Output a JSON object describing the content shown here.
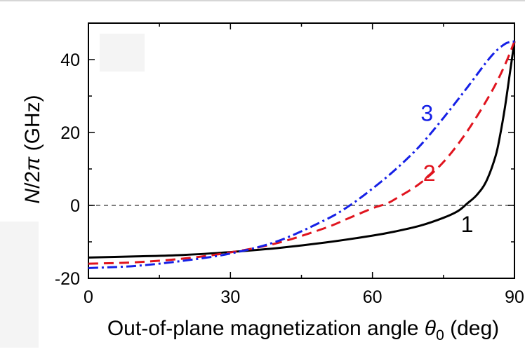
{
  "chart_data": {
    "type": "line",
    "xlabel_text": "Out-of-plane magnetization angle ",
    "xlabel_symbol": "θ",
    "xlabel_sub": "0",
    "xlabel_unit": " (deg)",
    "ylabel_italic": "N",
    "ylabel_mid": "/2",
    "ylabel_symbol": "π",
    "ylabel_unit": " (GHz)",
    "xlim": [
      0,
      90
    ],
    "ylim": [
      -20,
      50
    ],
    "xticks": [
      0,
      30,
      60,
      90
    ],
    "yticks": [
      -20,
      0,
      20,
      40
    ],
    "zero_line": true,
    "series": [
      {
        "name": "1",
        "color": "#000000",
        "dash": "solid",
        "label_at": [
          80,
          -5
        ],
        "x": [
          0,
          10,
          20,
          30,
          40,
          50,
          60,
          65,
          70,
          75,
          78,
          80,
          82,
          84,
          86,
          87,
          88,
          89,
          90
        ],
        "y": [
          -14.3,
          -14.0,
          -13.6,
          -12.8,
          -11.7,
          -10.2,
          -8.3,
          -7.1,
          -5.6,
          -3.4,
          -1.6,
          0.5,
          2.8,
          6.5,
          13.5,
          19.5,
          27,
          36,
          45
        ]
      },
      {
        "name": "2",
        "color": "#e0141e",
        "dash": "dashed",
        "label_at": [
          72,
          9
        ],
        "x": [
          0,
          10,
          20,
          30,
          40,
          50,
          55,
          60,
          63,
          65,
          70,
          75,
          80,
          85,
          88,
          90
        ],
        "y": [
          -16.0,
          -15.6,
          -14.6,
          -12.9,
          -10.3,
          -6.2,
          -3.5,
          -0.8,
          0.5,
          1.9,
          6.0,
          11.9,
          20.3,
          30.8,
          38.6,
          45
        ]
      },
      {
        "name": "3",
        "color": "#1520e6",
        "dash": "dashdot",
        "label_at": [
          71.5,
          25.5
        ],
        "x": [
          0,
          10,
          20,
          30,
          40,
          50,
          55,
          60,
          65,
          70,
          75,
          80,
          85,
          88,
          90
        ],
        "y": [
          -17.2,
          -16.6,
          -15.2,
          -13.2,
          -9.8,
          -4.0,
          -0.2,
          4.6,
          10.0,
          16.3,
          24.0,
          32.3,
          40.8,
          44.3,
          45
        ]
      }
    ]
  }
}
